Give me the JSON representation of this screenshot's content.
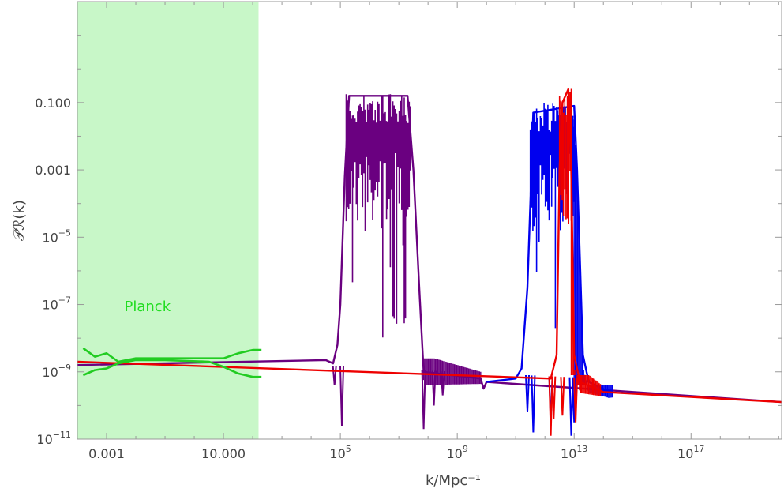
{
  "chart_data": {
    "type": "line",
    "xlabel": "k/Mpc⁻¹",
    "ylabel": "𝒫ℛ(k)",
    "xscale": "log",
    "yscale": "log",
    "xlim_log10": [
      -4.0,
      20.1
    ],
    "ylim_log10": [
      -11,
      2.0
    ],
    "grid": false,
    "x_ticks": [
      {
        "log10": -3,
        "label": "0.001"
      },
      {
        "log10": 1,
        "label": "10.000"
      },
      {
        "log10": 5,
        "base": "10",
        "exp": "5"
      },
      {
        "log10": 9,
        "base": "10",
        "exp": "9"
      },
      {
        "log10": 13,
        "base": "10",
        "exp": "13"
      },
      {
        "log10": 17,
        "base": "10",
        "exp": "17"
      }
    ],
    "y_ticks": [
      {
        "log10": -1,
        "label": "0.100"
      },
      {
        "log10": -3,
        "label": "0.001"
      },
      {
        "log10": -5,
        "base": "10",
        "exp": "−5"
      },
      {
        "log10": -7,
        "base": "10",
        "exp": "−7"
      },
      {
        "log10": -9,
        "base": "10",
        "exp": "−9"
      },
      {
        "log10": -11,
        "base": "10",
        "exp": "−11"
      }
    ],
    "shaded_region": {
      "x_log10": [
        -4.0,
        2.2
      ],
      "color": "#c8f7c8"
    },
    "annotation": {
      "text": "Planck",
      "x_log10": -1.6,
      "y_log10": -7.2,
      "color": "#22dd22"
    },
    "baseline": {
      "slope": -0.0417,
      "intercept": -8.625
    },
    "series": [
      {
        "color": "#6a0080",
        "envelope": [
          [
            -4.0,
            -8.8
          ],
          [
            4.5,
            -8.65
          ],
          [
            4.75,
            -8.75
          ],
          [
            4.9,
            -8.2
          ],
          [
            5.0,
            -7.0
          ],
          [
            5.15,
            -3.2
          ],
          [
            5.3,
            -0.8
          ],
          [
            7.3,
            -0.8
          ],
          [
            7.5,
            -3.0
          ],
          [
            7.7,
            -6.5
          ],
          [
            7.85,
            -9.0
          ],
          [
            9.8,
            -9.2
          ],
          [
            9.9,
            -9.5
          ],
          [
            10.0,
            -9.3
          ],
          [
            20.1,
            -9.9
          ]
        ],
        "band": {
          "x_log10": [
            5.2,
            7.4
          ],
          "top": -0.75
        },
        "dips": [
          [
            4.8,
            -9.4
          ],
          [
            5.05,
            -10.6
          ],
          [
            7.85,
            -10.7
          ],
          [
            8.2,
            -10.0
          ],
          [
            8.5,
            -9.7
          ]
        ],
        "tail": {
          "x_log10": [
            7.8,
            9.8
          ],
          "top": -8.6,
          "bottom": -9.5
        }
      },
      {
        "color": "#0000ee",
        "envelope": [
          [
            10.0,
            -9.3
          ],
          [
            11.0,
            -9.2
          ],
          [
            11.2,
            -8.9
          ],
          [
            11.4,
            -6.5
          ],
          [
            11.5,
            -4.0
          ],
          [
            11.6,
            -1.3
          ],
          [
            13.0,
            -1.1
          ],
          [
            13.1,
            -3.0
          ],
          [
            13.3,
            -8.5
          ],
          [
            13.5,
            -9.3
          ],
          [
            14.2,
            -9.6
          ]
        ],
        "band": {
          "x_log10": [
            11.5,
            13.0
          ],
          "top": -1.0
        },
        "dips": [
          [
            11.4,
            -10.2
          ],
          [
            11.6,
            -10.8
          ],
          [
            12.2,
            -10.6
          ],
          [
            12.9,
            -10.9
          ],
          [
            13.0,
            -10.5
          ]
        ],
        "tail": {
          "x_log10": [
            13.0,
            14.3
          ],
          "top": -9.4,
          "bottom": -10.0
        }
      },
      {
        "color": "#ee0000",
        "envelope": [
          [
            -4.0,
            -8.7
          ],
          [
            12.2,
            -9.2
          ],
          [
            12.4,
            -8.5
          ],
          [
            12.5,
            -3.0
          ],
          [
            12.6,
            -1.0
          ],
          [
            12.8,
            -0.6
          ],
          [
            12.9,
            -3.0
          ],
          [
            13.0,
            -8.5
          ],
          [
            13.2,
            -9.3
          ],
          [
            14.0,
            -9.6
          ],
          [
            20.1,
            -9.9
          ]
        ],
        "band": {
          "x_log10": [
            12.5,
            12.9
          ],
          "top": -0.5
        },
        "dips": [
          [
            12.2,
            -10.9
          ],
          [
            12.3,
            -10.4
          ],
          [
            12.6,
            -10.3
          ],
          [
            13.05,
            -10.5
          ]
        ],
        "tail": {
          "x_log10": [
            12.9,
            13.9
          ],
          "top": -9.1,
          "bottom": -9.8
        }
      }
    ],
    "planck_band": {
      "color": "#22cc22",
      "x_log10": [
        -3.8,
        2.3
      ],
      "upper": [
        [
          -3.8,
          -8.3
        ],
        [
          -3.4,
          -8.55
        ],
        [
          -3.0,
          -8.45
        ],
        [
          -2.6,
          -8.7
        ],
        [
          -2.0,
          -8.6
        ],
        [
          -1.0,
          -8.6
        ],
        [
          0.5,
          -8.6
        ],
        [
          1.0,
          -8.6
        ],
        [
          1.5,
          -8.45
        ],
        [
          2.0,
          -8.35
        ],
        [
          2.3,
          -8.35
        ]
      ],
      "lower": [
        [
          -3.8,
          -9.1
        ],
        [
          -3.4,
          -8.95
        ],
        [
          -3.0,
          -8.9
        ],
        [
          -2.6,
          -8.75
        ],
        [
          -2.0,
          -8.65
        ],
        [
          -1.0,
          -8.65
        ],
        [
          0.5,
          -8.7
        ],
        [
          1.0,
          -8.85
        ],
        [
          1.5,
          -9.05
        ],
        [
          2.0,
          -9.15
        ],
        [
          2.3,
          -9.15
        ]
      ]
    }
  }
}
